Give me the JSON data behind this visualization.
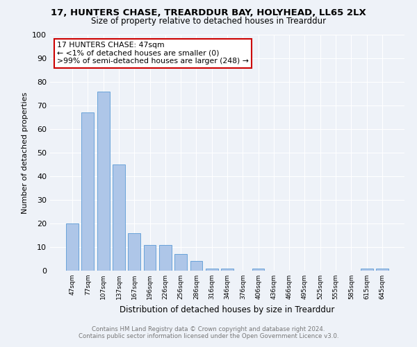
{
  "title": "17, HUNTERS CHASE, TREARDDUR BAY, HOLYHEAD, LL65 2LX",
  "subtitle": "Size of property relative to detached houses in Trearddur",
  "xlabel": "Distribution of detached houses by size in Trearddur",
  "ylabel": "Number of detached properties",
  "categories": [
    "47sqm",
    "77sqm",
    "107sqm",
    "137sqm",
    "167sqm",
    "196sqm",
    "226sqm",
    "256sqm",
    "286sqm",
    "316sqm",
    "346sqm",
    "376sqm",
    "406sqm",
    "436sqm",
    "466sqm",
    "495sqm",
    "525sqm",
    "555sqm",
    "585sqm",
    "615sqm",
    "645sqm"
  ],
  "values": [
    20,
    67,
    76,
    45,
    16,
    11,
    11,
    7,
    4,
    1,
    1,
    0,
    1,
    0,
    0,
    0,
    0,
    0,
    0,
    1,
    1
  ],
  "bar_color": "#aec6e8",
  "bar_edge_color": "#5a9ad5",
  "highlight_color": "#cc0000",
  "highlight_index": 0,
  "ylim": [
    0,
    100
  ],
  "yticks": [
    0,
    10,
    20,
    30,
    40,
    50,
    60,
    70,
    80,
    90,
    100
  ],
  "annotation_lines": [
    "17 HUNTERS CHASE: 47sqm",
    "← <1% of detached houses are smaller (0)",
    ">99% of semi-detached houses are larger (248) →"
  ],
  "footer_line1": "Contains HM Land Registry data © Crown copyright and database right 2024.",
  "footer_line2": "Contains public sector information licensed under the Open Government Licence v3.0.",
  "background_color": "#eef2f8",
  "plot_bg_color": "#eef2f8",
  "grid_color": "#ffffff"
}
